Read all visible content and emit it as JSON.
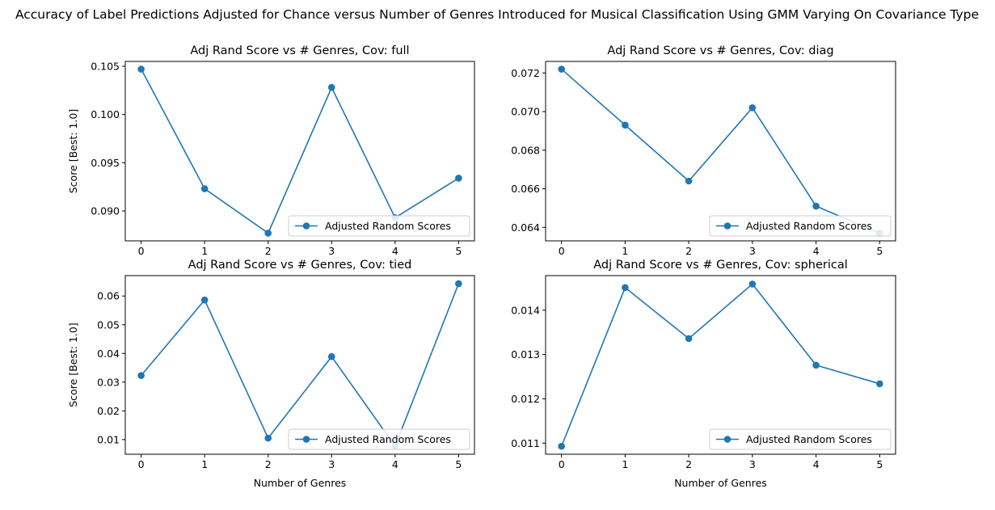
{
  "figure": {
    "suptitle": "Accuracy of Label Predictions Adjusted for Chance versus Number of Genres Introduced for Musical Classification Using GMM Varying On Covariance Type"
  },
  "chart_data": [
    {
      "type": "line",
      "title": "Adj Rand Score vs # Genres, Cov: full",
      "xlabel": "",
      "ylabel": "Score [Best: 1.0]",
      "x": [
        0,
        1,
        2,
        3,
        4,
        5
      ],
      "xticks": [
        "0",
        "1",
        "2",
        "3",
        "4",
        "5"
      ],
      "yticks": [
        "0.090",
        "0.095",
        "0.100",
        "0.105"
      ],
      "ylim": [
        0.0869,
        0.1055
      ],
      "series": [
        {
          "name": "Adjusted Random Scores",
          "values": [
            0.1047,
            0.0923,
            0.0877,
            0.1028,
            0.0893,
            0.0934
          ],
          "color": "#1f77b4"
        }
      ],
      "legend": "lower-right"
    },
    {
      "type": "line",
      "title": "Adj Rand Score vs # Genres, Cov: diag",
      "xlabel": "",
      "ylabel": "",
      "x": [
        0,
        1,
        2,
        3,
        4,
        5
      ],
      "xticks": [
        "0",
        "1",
        "2",
        "3",
        "4",
        "5"
      ],
      "yticks": [
        "0.064",
        "0.066",
        "0.068",
        "0.070",
        "0.072"
      ],
      "ylim": [
        0.0633,
        0.0726
      ],
      "series": [
        {
          "name": "Adjusted Random Scores",
          "values": [
            0.0722,
            0.0693,
            0.0664,
            0.0702,
            0.0651,
            0.0637
          ],
          "color": "#1f77b4"
        }
      ],
      "legend": "lower-right"
    },
    {
      "type": "line",
      "title": "Adj Rand Score vs # Genres, Cov: tied",
      "xlabel": "Number of Genres",
      "ylabel": "Score [Best: 1.0]",
      "x": [
        0,
        1,
        2,
        3,
        4,
        5
      ],
      "xticks": [
        "0",
        "1",
        "2",
        "3",
        "4",
        "5"
      ],
      "yticks": [
        "0.01",
        "0.02",
        "0.03",
        "0.04",
        "0.05",
        "0.06"
      ],
      "ylim": [
        0.0049,
        0.0671
      ],
      "series": [
        {
          "name": "Adjusted Random Scores",
          "values": [
            0.0323,
            0.0586,
            0.0105,
            0.0389,
            0.0077,
            0.0643
          ],
          "color": "#1f77b4"
        }
      ],
      "legend": "lower-right"
    },
    {
      "type": "line",
      "title": "Adj Rand Score vs # Genres, Cov: spherical",
      "xlabel": "Number of Genres",
      "ylabel": "",
      "x": [
        0,
        1,
        2,
        3,
        4,
        5
      ],
      "xticks": [
        "0",
        "1",
        "2",
        "3",
        "4",
        "5"
      ],
      "yticks": [
        "0.011",
        "0.012",
        "0.013",
        "0.014"
      ],
      "ylim": [
        0.01075,
        0.01478
      ],
      "series": [
        {
          "name": "Adjusted Random Scores",
          "values": [
            0.01093,
            0.01451,
            0.01336,
            0.01459,
            0.01276,
            0.01234
          ],
          "color": "#1f77b4"
        }
      ],
      "legend": "lower-right"
    }
  ]
}
